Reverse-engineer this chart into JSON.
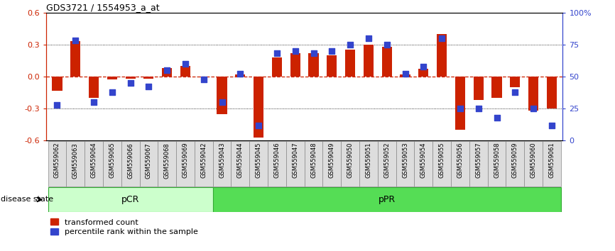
{
  "title": "GDS3721 / 1554953_a_at",
  "samples": [
    "GSM559062",
    "GSM559063",
    "GSM559064",
    "GSM559065",
    "GSM559066",
    "GSM559067",
    "GSM559068",
    "GSM559069",
    "GSM559042",
    "GSM559043",
    "GSM559044",
    "GSM559045",
    "GSM559046",
    "GSM559047",
    "GSM559048",
    "GSM559049",
    "GSM559050",
    "GSM559051",
    "GSM559052",
    "GSM559053",
    "GSM559054",
    "GSM559055",
    "GSM559056",
    "GSM559057",
    "GSM559058",
    "GSM559059",
    "GSM559060",
    "GSM559061"
  ],
  "red_values": [
    -0.13,
    0.33,
    -0.2,
    -0.03,
    -0.02,
    -0.02,
    0.08,
    0.1,
    -0.01,
    -0.35,
    0.02,
    -0.57,
    0.18,
    0.22,
    0.22,
    0.2,
    0.25,
    0.3,
    0.28,
    0.02,
    0.07,
    0.4,
    -0.5,
    -0.22,
    -0.2,
    -0.1,
    -0.32,
    -0.3
  ],
  "blue_values": [
    28,
    78,
    30,
    38,
    45,
    42,
    55,
    60,
    48,
    30,
    52,
    12,
    68,
    70,
    68,
    70,
    75,
    80,
    75,
    52,
    58,
    80,
    25,
    25,
    18,
    38,
    25,
    12
  ],
  "pCR_count": 9,
  "pPR_count": 19,
  "ylim": [
    -0.6,
    0.6
  ],
  "yticks_left": [
    -0.6,
    -0.3,
    0.0,
    0.3,
    0.6
  ],
  "yticks_right": [
    0,
    25,
    50,
    75,
    100
  ],
  "red_color": "#CC2200",
  "blue_color": "#3344CC",
  "pCR_color": "#CCFFCC",
  "pPR_color": "#55DD55",
  "bar_width": 0.55,
  "blue_square_size": 30,
  "legend_red": "transformed count",
  "legend_blue": "percentile rank within the sample",
  "disease_state_label": "disease state",
  "pCR_label": "pCR",
  "pPR_label": "pPR",
  "tick_label_bg": "#DDDDDD",
  "tick_box_border": "#888888"
}
